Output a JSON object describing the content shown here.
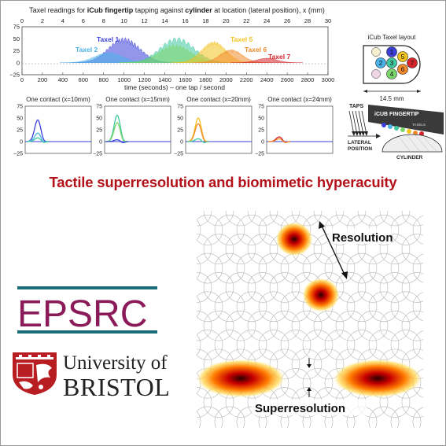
{
  "main_chart": {
    "title_prefix": "Taxel readings for ",
    "title_bold1": "iCub fingertip",
    "title_mid": " tapping against ",
    "title_bold2": "cylinder",
    "title_suffix": " at location (lateral position), x (mm)",
    "xlabel": "time (seconds) – one tap / second",
    "top_ticks": [
      "0",
      "2",
      "4",
      "6",
      "8",
      "10",
      "12",
      "14",
      "16",
      "18",
      "20",
      "22",
      "24",
      "26",
      "28",
      "30"
    ],
    "bottom_ticks": [
      "0",
      "200",
      "400",
      "600",
      "800",
      "1000",
      "1200",
      "1400",
      "1600",
      "1800",
      "2000",
      "2200",
      "2400",
      "2600",
      "2800",
      "3000"
    ],
    "y_ticks": [
      "75",
      "50",
      "25",
      "0",
      "−25"
    ],
    "xlim": [
      0,
      3000
    ],
    "ylim": [
      -25,
      75
    ],
    "series": [
      {
        "name": "Taxel 1",
        "color": "#3a3fd8"
      },
      {
        "name": "Taxel 2",
        "color": "#4ab3e8"
      },
      {
        "name": "Taxel 3",
        "color": "#3ec9a0"
      },
      {
        "name": "Taxel 4",
        "color": "#7ad66a"
      },
      {
        "name": "Taxel 5",
        "color": "#f2c21e"
      },
      {
        "name": "Taxel 6",
        "color": "#f08a2a"
      },
      {
        "name": "Taxel 7",
        "color": "#d6242a"
      }
    ]
  },
  "small_charts": [
    {
      "title": "One contact (x=10mm)",
      "y_ticks": [
        "75",
        "50",
        "25",
        "0",
        "−25"
      ]
    },
    {
      "title": "One contact (x=15mm)",
      "y_ticks": [
        "75",
        "50",
        "25",
        "0",
        "−25"
      ]
    },
    {
      "title": "One contact (x=20mm)",
      "y_ticks": [
        "75",
        "50",
        "25",
        "0",
        "−25"
      ]
    },
    {
      "title": "One contact (x=24mm)",
      "y_ticks": [
        "75",
        "50",
        "25",
        "0",
        "−25"
      ]
    }
  ],
  "taxel_layout": {
    "title": "iCub Taxel layout",
    "width_label": "14.5 mm",
    "numbers": [
      "1",
      "2",
      "3",
      "4",
      "5",
      "6",
      "7"
    ]
  },
  "fingertip_diagram": {
    "taps": "TAPS",
    "fingertip": "iCUB FINGERTIP",
    "taxels": "TAXELS",
    "lateral_line1": "LATERAL",
    "lateral_line2": "POSITION",
    "cylinder": "CYLINDER"
  },
  "headline": "Tactile superresolution and biomimetic hyperacuity",
  "grid_figure": {
    "resolution_label": "Resolution",
    "superresolution_label": "Superresolution"
  },
  "logos": {
    "epsrc": "EPSRC",
    "uob_line1": "University of",
    "uob_line2": "BRISTOL"
  },
  "colors": {
    "headline": "#b3121b",
    "epsrc_text": "#8b1a58",
    "epsrc_bars": "#1c6c78",
    "uob_crest": "#b81d22"
  }
}
